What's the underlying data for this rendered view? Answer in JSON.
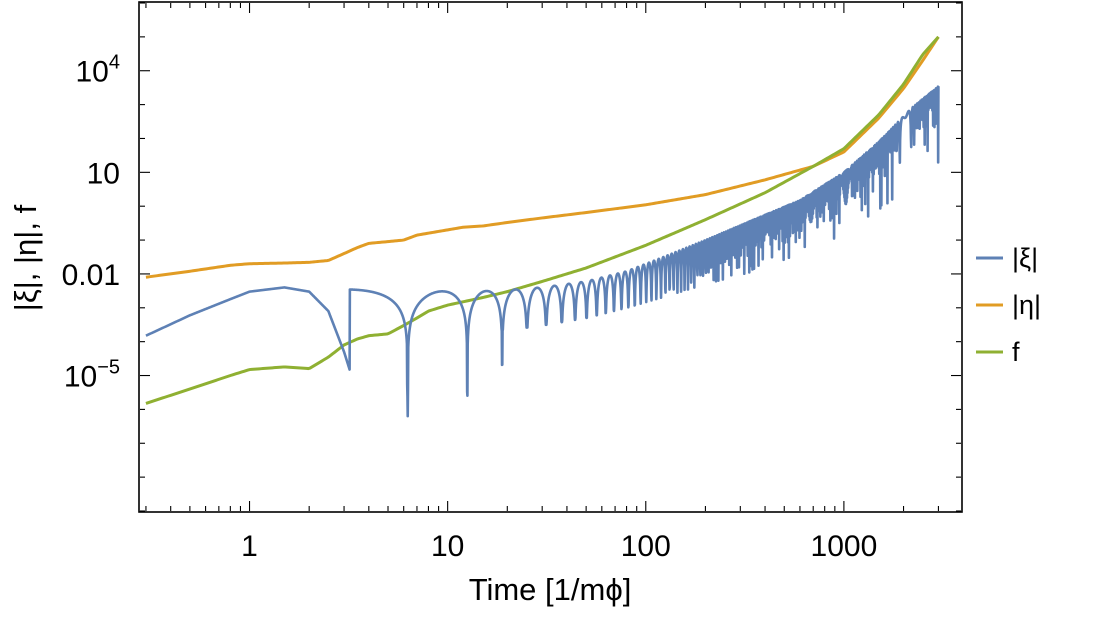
{
  "chart_data": {
    "type": "line",
    "xlabel": "Time [1/mϕ]",
    "ylabel": "|ξ|, |η|, f",
    "x_scale": "log",
    "y_scale": "log",
    "xlim": [
      0.28,
      3900
    ],
    "ylim": [
      1e-09,
      1000000.0
    ],
    "grid": false,
    "legend_position": "right",
    "x_ticks": [
      {
        "value": 1,
        "label": "1"
      },
      {
        "value": 10,
        "label": "10"
      },
      {
        "value": 100,
        "label": "100"
      },
      {
        "value": 1000,
        "label": "1000"
      }
    ],
    "y_ticks": [
      {
        "value": 10000,
        "base": "10",
        "exp": "4"
      },
      {
        "value": 10,
        "label": "10"
      },
      {
        "value": 0.01,
        "label": "0.01"
      },
      {
        "value": 1e-05,
        "base": "10",
        "exp": "−5"
      }
    ],
    "series": [
      {
        "name": "|ξ|",
        "color": "#5e81b5",
        "style": "oscillating",
        "x": [
          0.3,
          0.5,
          0.8,
          1.0,
          1.5,
          2.0,
          2.5,
          3.0,
          3.2,
          4.0,
          5.0,
          6.0,
          6.4,
          8.0,
          10,
          12.5,
          15,
          20,
          30,
          40,
          50,
          70,
          100,
          150,
          200,
          300,
          500,
          700,
          1000,
          1500,
          2000,
          2500,
          3000
        ],
        "y": [
          0.00015,
          0.0006,
          0.0018,
          0.003,
          0.004,
          0.003,
          0.0008,
          5e-05,
          1.5e-05,
          0.001,
          0.0035,
          0.001,
          1e-07,
          0.003,
          0.003,
          8e-08,
          0.002,
          0.0015,
          0.0008,
          4e-08,
          0.001,
          0.0015,
          0.003,
          0.0025,
          0.005,
          0.01,
          0.06,
          0.2,
          0.8,
          5,
          50,
          300,
          3000
        ],
        "envelope_top": [
          0.003,
          0.0034,
          0.0036,
          0.0035,
          0.0033,
          0.0031,
          0.003,
          0.0032,
          0.004,
          0.006,
          0.012,
          0.03,
          0.1,
          0.4,
          1.5,
          10,
          80,
          800,
          3500
        ],
        "envelope_bottom": [
          0.0003,
          0.0002,
          0.00015,
          0.0001,
          0.0001,
          0.00012,
          0.00015,
          0.0002,
          0.0003,
          0.0005,
          0.001,
          0.002,
          0.005,
          0.012,
          0.04,
          0.15,
          0.8,
          4,
          20
        ]
      },
      {
        "name": "|η|",
        "color": "#e19c24",
        "x": [
          0.3,
          0.5,
          0.8,
          1.0,
          1.5,
          2.0,
          2.5,
          3.0,
          3.5,
          4.0,
          5.0,
          6.0,
          7.0,
          8.0,
          10,
          12,
          15,
          20,
          30,
          50,
          100,
          200,
          400,
          700,
          1000,
          1500,
          2000,
          2500,
          3000
        ],
        "y": [
          0.008,
          0.012,
          0.018,
          0.02,
          0.021,
          0.022,
          0.025,
          0.04,
          0.06,
          0.08,
          0.09,
          0.1,
          0.14,
          0.16,
          0.2,
          0.24,
          0.26,
          0.33,
          0.45,
          0.65,
          1.1,
          2.2,
          6,
          15,
          40,
          400,
          3000,
          20000,
          100000
        ]
      },
      {
        "name": "f",
        "color": "#8fb032",
        "x": [
          0.3,
          0.5,
          0.8,
          1.0,
          1.5,
          2.0,
          2.5,
          3.0,
          3.5,
          4.0,
          5.0,
          6.0,
          7.0,
          8.0,
          10,
          15,
          20,
          30,
          50,
          100,
          200,
          400,
          700,
          1000,
          1500,
          2000,
          2500,
          3000
        ],
        "y": [
          1.5e-06,
          4e-06,
          1e-05,
          1.5e-05,
          1.8e-05,
          1.6e-05,
          3.5e-05,
          8e-05,
          0.00012,
          0.00015,
          0.00017,
          0.0003,
          0.0005,
          0.0008,
          0.0012,
          0.002,
          0.003,
          0.006,
          0.015,
          0.07,
          0.4,
          2.5,
          15,
          50,
          500,
          4000,
          30000,
          100000
        ]
      }
    ]
  }
}
